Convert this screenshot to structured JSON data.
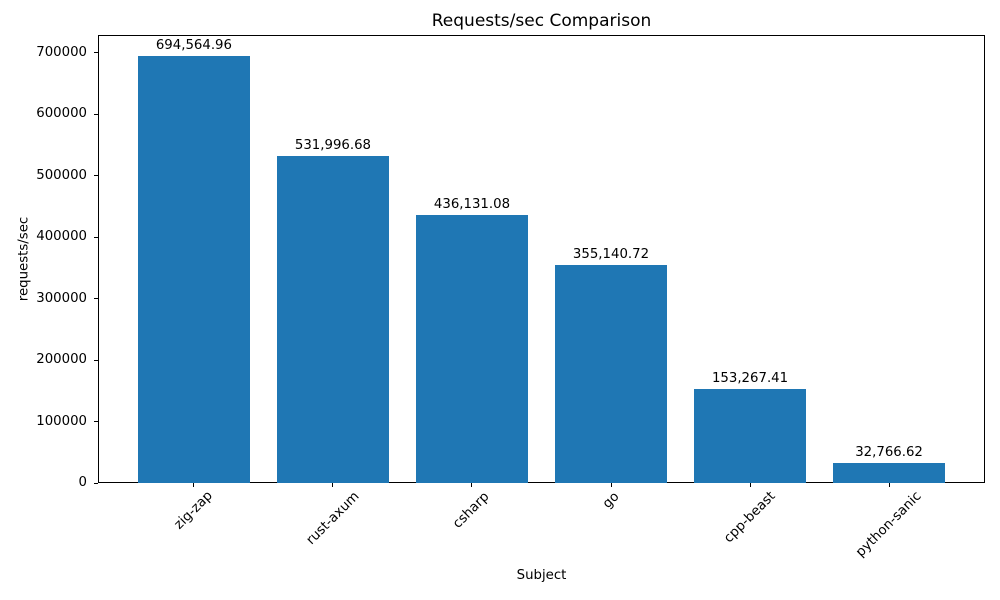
{
  "chart_data": {
    "type": "bar",
    "title": "Requests/sec Comparison",
    "xlabel": "Subject",
    "ylabel": "requests/sec",
    "categories": [
      "zig-zap",
      "rust-axum",
      "csharp",
      "go",
      "cpp-beast",
      "python-sanic"
    ],
    "values": [
      694564.96,
      531996.68,
      436131.08,
      355140.72,
      153267.41,
      32766.62
    ],
    "value_labels": [
      "694,564.96",
      "531,996.68",
      "436,131.08",
      "355,140.72",
      "153,267.41",
      "32,766.62"
    ],
    "yticks": [
      0,
      100000,
      200000,
      300000,
      400000,
      500000,
      600000,
      700000
    ],
    "ytick_labels": [
      "0",
      "100000",
      "200000",
      "300000",
      "400000",
      "500000",
      "600000",
      "700000"
    ],
    "ylim": [
      0,
      729293
    ],
    "bar_color": "#1f77b4",
    "grid": false,
    "legend": null
  }
}
